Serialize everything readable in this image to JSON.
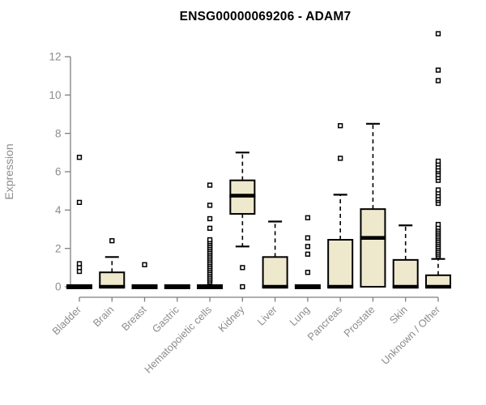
{
  "title": "ENSG00000069206 - ADAM7",
  "colors": {
    "background": "#ffffff",
    "box_fill": "#EEE8CD",
    "box_stroke": "#000000",
    "median": "#000000",
    "whisker": "#000000",
    "outlier_stroke": "#000000",
    "outlier_fill": "#ffffff",
    "axis_line": "#7f7f7f",
    "tick_text": "#8c8c8c",
    "title_text": "#000000"
  },
  "chart_data": {
    "type": "boxplot",
    "title": "ENSG00000069206 - ADAM7",
    "xlabel": "",
    "ylabel": "Expression",
    "ylim": [
      0,
      13.5
    ],
    "yticks": [
      0,
      2,
      4,
      6,
      8,
      10,
      12
    ],
    "grid": false,
    "legend": "none",
    "categories": [
      "Bladder",
      "Brain",
      "Breast",
      "Gastric",
      "Hematopoietic cells",
      "Kidney",
      "Liver",
      "Lung",
      "Pancreas",
      "Prostate",
      "Skin",
      "Unknown / Other"
    ],
    "series": [
      {
        "name": "Bladder",
        "q1": 0,
        "median": 0,
        "q3": 0,
        "whisker_low": 0,
        "whisker_high": 0,
        "outliers": [
          0.8,
          1.0,
          1.2,
          4.4,
          6.75
        ]
      },
      {
        "name": "Brain",
        "q1": 0,
        "median": 0,
        "q3": 0.75,
        "whisker_low": 0,
        "whisker_high": 1.55,
        "outliers": [
          2.4
        ]
      },
      {
        "name": "Breast",
        "q1": 0,
        "median": 0,
        "q3": 0,
        "whisker_low": 0,
        "whisker_high": 0,
        "outliers": [
          1.15
        ]
      },
      {
        "name": "Gastric",
        "q1": 0,
        "median": 0,
        "q3": 0,
        "whisker_low": 0,
        "whisker_high": 0,
        "outliers": []
      },
      {
        "name": "Hematopoietic cells",
        "q1": 0,
        "median": 0,
        "q3": 0,
        "whisker_low": 0,
        "whisker_high": 0,
        "outliers": [
          0.25,
          0.35,
          0.45,
          0.55,
          0.65,
          0.75,
          0.85,
          0.95,
          1.05,
          1.15,
          1.25,
          1.35,
          1.45,
          1.55,
          1.65,
          1.75,
          1.85,
          1.95,
          2.05,
          2.15,
          2.25,
          2.35,
          2.45,
          3.05,
          3.55,
          4.25,
          5.3
        ]
      },
      {
        "name": "Kidney",
        "q1": 3.8,
        "median": 4.75,
        "q3": 5.55,
        "whisker_low": 2.1,
        "whisker_high": 7.0,
        "outliers": [
          1.0,
          0.0
        ]
      },
      {
        "name": "Liver",
        "q1": 0,
        "median": 0,
        "q3": 1.55,
        "whisker_low": 0,
        "whisker_high": 3.4,
        "outliers": []
      },
      {
        "name": "Lung",
        "q1": 0,
        "median": 0,
        "q3": 0,
        "whisker_low": 0,
        "whisker_high": 0,
        "outliers": [
          0.75,
          1.7,
          2.1,
          2.55,
          3.6
        ]
      },
      {
        "name": "Pancreas",
        "q1": 0,
        "median": 0,
        "q3": 2.45,
        "whisker_low": 0,
        "whisker_high": 4.8,
        "outliers": [
          6.7,
          8.4
        ]
      },
      {
        "name": "Prostate",
        "q1": 0,
        "median": 2.55,
        "q3": 4.05,
        "whisker_low": 0,
        "whisker_high": 8.5,
        "outliers": []
      },
      {
        "name": "Skin",
        "q1": 0,
        "median": 0,
        "q3": 1.4,
        "whisker_low": 0,
        "whisker_high": 3.2,
        "outliers": []
      },
      {
        "name": "Unknown / Other",
        "q1": 0,
        "median": 0,
        "q3": 0.6,
        "whisker_low": 0,
        "whisker_high": 1.45,
        "outliers": [
          1.6,
          1.7,
          1.8,
          1.9,
          2.0,
          2.1,
          2.2,
          2.3,
          2.4,
          2.5,
          2.6,
          2.7,
          2.8,
          2.9,
          3.0,
          3.1,
          3.25,
          4.35,
          4.5,
          4.6,
          4.75,
          4.9,
          5.05,
          5.55,
          5.7,
          5.85,
          6.0,
          6.1,
          6.25,
          6.4,
          6.55,
          10.75,
          11.3,
          13.2
        ]
      }
    ]
  }
}
